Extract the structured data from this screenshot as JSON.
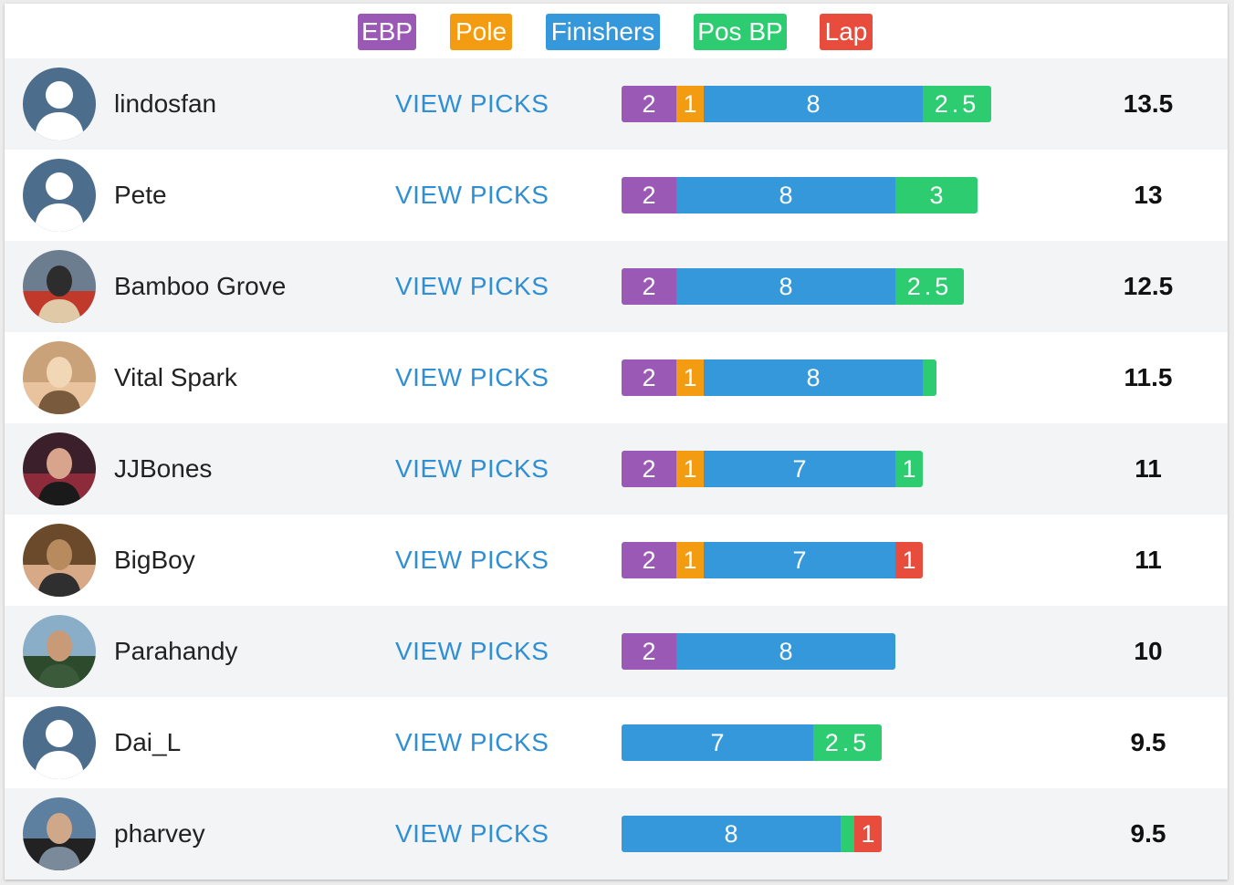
{
  "colors": {
    "ebp": "#9b59b6",
    "pole": "#f39c12",
    "finishers": "#3498db",
    "posbp": "#2ecc71",
    "lap": "#e74c3c"
  },
  "legend": [
    {
      "key": "ebp",
      "label": "EBP"
    },
    {
      "key": "pole",
      "label": "Pole"
    },
    {
      "key": "finishers",
      "label": "Finishers"
    },
    {
      "key": "posbp",
      "label": "Pos BP"
    },
    {
      "key": "lap",
      "label": "Lap"
    }
  ],
  "view_picks_label": "VIEW PICKS",
  "players": [
    {
      "name": "lindosfan",
      "avatar": "default-avatar-icon",
      "score": "13.5",
      "segments": [
        {
          "key": "ebp",
          "value": 2,
          "label": "2"
        },
        {
          "key": "pole",
          "value": 1,
          "label": "1"
        },
        {
          "key": "finishers",
          "value": 8,
          "label": "8"
        },
        {
          "key": "posbp",
          "value": 2.5,
          "label": "2.5"
        }
      ]
    },
    {
      "name": "Pete",
      "avatar": "default-avatar-icon",
      "score": "13",
      "segments": [
        {
          "key": "ebp",
          "value": 2,
          "label": "2"
        },
        {
          "key": "finishers",
          "value": 8,
          "label": "8"
        },
        {
          "key": "posbp",
          "value": 3,
          "label": "3"
        }
      ]
    },
    {
      "name": "Bamboo Grove",
      "avatar": "photo-avatar",
      "score": "12.5",
      "segments": [
        {
          "key": "ebp",
          "value": 2,
          "label": "2"
        },
        {
          "key": "finishers",
          "value": 8,
          "label": "8"
        },
        {
          "key": "posbp",
          "value": 2.5,
          "label": "2.5"
        }
      ]
    },
    {
      "name": "Vital Spark",
      "avatar": "photo-avatar",
      "score": "11.5",
      "segments": [
        {
          "key": "ebp",
          "value": 2,
          "label": "2"
        },
        {
          "key": "pole",
          "value": 1,
          "label": "1"
        },
        {
          "key": "finishers",
          "value": 8,
          "label": "8"
        },
        {
          "key": "posbp",
          "value": 0.5,
          "label": ""
        }
      ]
    },
    {
      "name": "JJBones",
      "avatar": "photo-avatar",
      "score": "11",
      "segments": [
        {
          "key": "ebp",
          "value": 2,
          "label": "2"
        },
        {
          "key": "pole",
          "value": 1,
          "label": "1"
        },
        {
          "key": "finishers",
          "value": 7,
          "label": "7"
        },
        {
          "key": "posbp",
          "value": 1,
          "label": "1"
        }
      ]
    },
    {
      "name": "BigBoy",
      "avatar": "photo-avatar",
      "score": "11",
      "segments": [
        {
          "key": "ebp",
          "value": 2,
          "label": "2"
        },
        {
          "key": "pole",
          "value": 1,
          "label": "1"
        },
        {
          "key": "finishers",
          "value": 7,
          "label": "7"
        },
        {
          "key": "lap",
          "value": 1,
          "label": "1"
        }
      ]
    },
    {
      "name": "Parahandy",
      "avatar": "photo-avatar",
      "score": "10",
      "segments": [
        {
          "key": "ebp",
          "value": 2,
          "label": "2"
        },
        {
          "key": "finishers",
          "value": 8,
          "label": "8"
        }
      ]
    },
    {
      "name": "Dai_L",
      "avatar": "default-avatar-icon",
      "score": "9.5",
      "segments": [
        {
          "key": "finishers",
          "value": 7,
          "label": "7"
        },
        {
          "key": "posbp",
          "value": 2.5,
          "label": "2.5"
        }
      ]
    },
    {
      "name": "pharvey",
      "avatar": "photo-avatar",
      "score": "9.5",
      "segments": [
        {
          "key": "finishers",
          "value": 8,
          "label": "8"
        },
        {
          "key": "posbp",
          "value": 0.5,
          "label": ""
        },
        {
          "key": "lap",
          "value": 1,
          "label": "1"
        }
      ]
    }
  ]
}
